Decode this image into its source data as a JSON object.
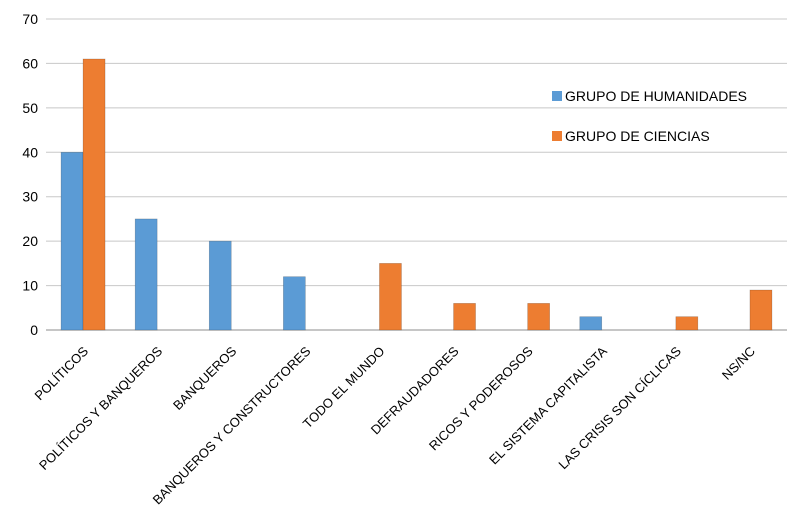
{
  "chart_data": {
    "type": "bar",
    "categories": [
      "POLÍTICOS",
      "POLÍTICOS Y BANQUEROS",
      "BANQUEROS",
      "BANQUEROS Y CONSTRUCTORES",
      "TODO EL MUNDO",
      "DEFRAUDADORES",
      "RICOS Y PODEROSOS",
      "EL SISTEMA CAPITALISTA",
      "LAS CRISIS SON CÍCLICAS",
      "NS/NC"
    ],
    "series": [
      {
        "name": "GRUPO DE HUMANIDADES",
        "color": "#5b9bd5",
        "values": [
          40,
          25,
          20,
          12,
          0,
          0,
          0,
          3,
          0,
          0
        ]
      },
      {
        "name": "GRUPO DE CIENCIAS",
        "color": "#ed7d31",
        "values": [
          61,
          0,
          0,
          0,
          15,
          6,
          6,
          0,
          3,
          9
        ]
      }
    ],
    "ylim": [
      0,
      70
    ],
    "yticks": [
      0,
      10,
      20,
      30,
      40,
      50,
      60,
      70
    ],
    "grid": true,
    "legend_position": "right"
  }
}
